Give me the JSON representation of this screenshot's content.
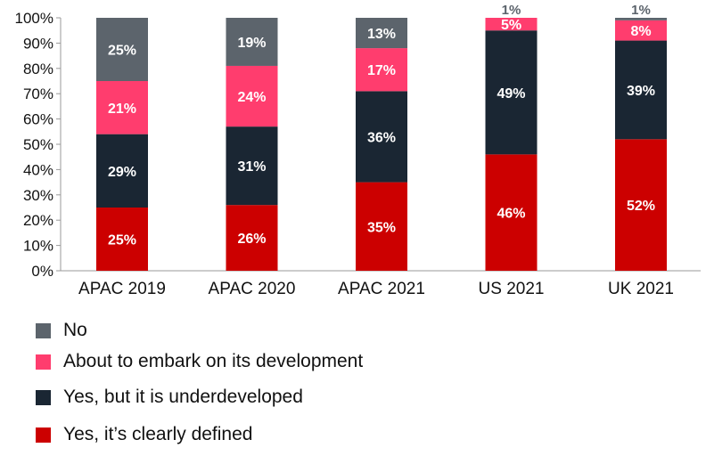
{
  "chart_data": {
    "type": "bar",
    "stacked": true,
    "categories": [
      "APAC 2019",
      "APAC 2020",
      "APAC 2021",
      "US 2021",
      "UK 2021"
    ],
    "series": [
      {
        "name": "Yes, it’s clearly defined",
        "color": "#cc0000",
        "values": [
          25,
          26,
          35,
          46,
          52
        ],
        "labels": [
          "25%",
          "26%",
          "35%",
          "46%",
          "52%"
        ]
      },
      {
        "name": "Yes, but it is underdeveloped",
        "color": "#1a2633",
        "values": [
          29,
          31,
          36,
          49,
          39
        ],
        "labels": [
          "29%",
          "31%",
          "36%",
          "49%",
          "39%"
        ]
      },
      {
        "name": "About to embark on its development",
        "color": "#ff3d6e",
        "values": [
          21,
          24,
          17,
          5,
          8
        ],
        "labels": [
          "21%",
          "24%",
          "17%",
          "5%",
          "8%"
        ]
      },
      {
        "name": "No",
        "color": "#5c646c",
        "values": [
          25,
          19,
          13,
          1,
          1
        ],
        "labels": [
          "25%",
          "19%",
          "13%",
          "1%",
          "1%"
        ]
      }
    ],
    "y_ticks": [
      "0%",
      "10%",
      "20%",
      "30%",
      "40%",
      "50%",
      "60%",
      "70%",
      "80%",
      "90%",
      "100%"
    ],
    "ylim": [
      0,
      100
    ],
    "legend_placement": "bottom-left",
    "legend_order": [
      "No",
      "About to embark on its development",
      "Yes, but it is underdeveloped",
      "Yes, it’s clearly defined"
    ],
    "grid": false
  }
}
